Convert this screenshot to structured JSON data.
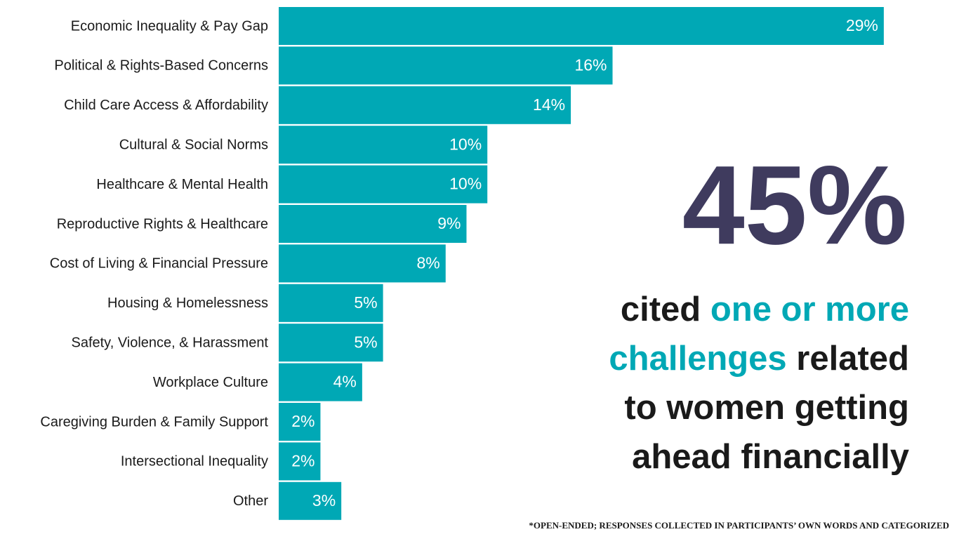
{
  "chart_data": {
    "type": "bar",
    "orientation": "horizontal",
    "color": "#00a8b5",
    "categories": [
      "Economic Inequality & Pay Gap",
      "Political & Rights-Based Concerns",
      "Child Care Access & Affordability",
      "Cultural & Social Norms",
      "Healthcare & Mental Health",
      "Reproductive Rights & Healthcare",
      "Cost of Living & Financial Pressure",
      "Housing & Homelessness",
      "Safety, Violence, & Harassment",
      "Workplace Culture",
      "Caregiving Burden & Family Support",
      "Intersectional Inequality",
      "Other"
    ],
    "values": [
      29,
      16,
      14,
      10,
      10,
      9,
      8,
      5,
      5,
      4,
      2,
      2,
      3
    ],
    "value_labels": [
      "29%",
      "16%",
      "14%",
      "10%",
      "10%",
      "9%",
      "8%",
      "5%",
      "5%",
      "4%",
      "2%",
      "2%",
      "3%"
    ]
  },
  "callout": {
    "figure": "45%",
    "figure_color": "#3f3b5e",
    "lines": [
      [
        {
          "text": "cited ",
          "color": "#1a1a1a"
        },
        {
          "text": "one or more",
          "color": "#00a8b5"
        }
      ],
      [
        {
          "text": "challenges",
          "color": "#00a8b5"
        },
        {
          "text": " related",
          "color": "#1a1a1a"
        }
      ],
      [
        {
          "text": "to women getting",
          "color": "#1a1a1a"
        }
      ],
      [
        {
          "text": "ahead financially",
          "color": "#1a1a1a"
        }
      ]
    ]
  },
  "footnote": "*OPEN-ENDED; RESPONSES COLLECTED IN PARTICIPANTS’ OWN WORDS AND CATEGORIZED"
}
